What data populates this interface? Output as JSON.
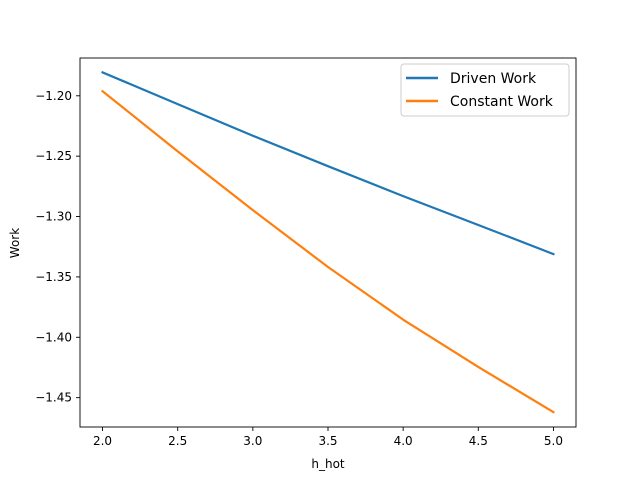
{
  "chart_data": {
    "type": "line",
    "title": "",
    "xlabel": "h_hot",
    "ylabel": "Work",
    "xlim": [
      1.85,
      5.15
    ],
    "ylim": [
      -1.4743,
      -1.1687
    ],
    "x_ticks": [
      2.0,
      2.5,
      3.0,
      3.5,
      4.0,
      4.5,
      5.0
    ],
    "x_tick_labels": [
      "2.0",
      "2.5",
      "3.0",
      "3.5",
      "4.0",
      "4.5",
      "5.0"
    ],
    "y_ticks": [
      -1.2,
      -1.25,
      -1.3,
      -1.35,
      -1.4,
      -1.45
    ],
    "y_tick_labels": [
      "−1.20",
      "−1.25",
      "−1.30",
      "−1.35",
      "−1.40",
      "−1.45"
    ],
    "grid": false,
    "legend_position": "top-right",
    "series": [
      {
        "name": "Driven Work",
        "color": "#1f77b4",
        "x": [
          2.0,
          2.5,
          3.0,
          3.5,
          4.0,
          4.5,
          5.0
        ],
        "y": [
          -1.1806,
          -1.2069,
          -1.2331,
          -1.2583,
          -1.2831,
          -1.307,
          -1.3311
        ]
      },
      {
        "name": "Constant Work",
        "color": "#ff7f0e",
        "x": [
          2.0,
          2.5,
          3.0,
          3.5,
          4.0,
          4.5,
          5.0
        ],
        "y": [
          -1.1962,
          -1.246,
          -1.2947,
          -1.3418,
          -1.3854,
          -1.4246,
          -1.462
        ]
      }
    ]
  }
}
